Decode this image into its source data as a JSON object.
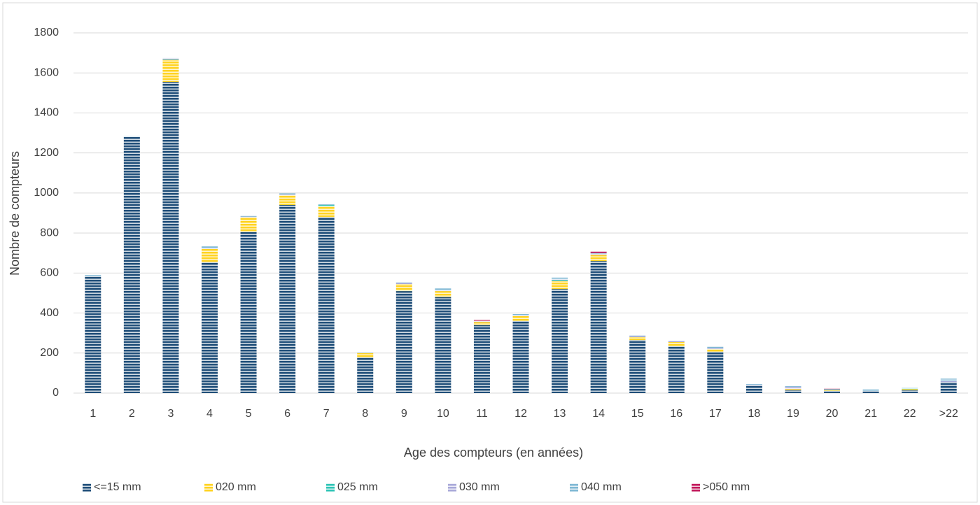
{
  "chart_data": {
    "type": "stacked_bar",
    "y_label": "Nombre de compteurs",
    "x_label": "Age des compteurs (en années)",
    "categories": [
      "1",
      "2",
      "3",
      "4",
      "5",
      "6",
      "7",
      "8",
      "9",
      "10",
      "11",
      "12",
      "13",
      "14",
      "15",
      "16",
      "17",
      "18",
      "19",
      "20",
      "21",
      "22",
      ">22"
    ],
    "series": [
      {
        "name": "<=15 mm",
        "color": "#1f4e79",
        "values": [
          585,
          1280,
          1555,
          655,
          805,
          940,
          880,
          180,
          510,
          480,
          340,
          360,
          520,
          660,
          265,
          235,
          205,
          40,
          15,
          10,
          10,
          15,
          55
        ]
      },
      {
        "name": "020 mm",
        "color": "#ffd320",
        "values": [
          0,
          0,
          110,
          65,
          75,
          50,
          55,
          20,
          35,
          30,
          15,
          25,
          40,
          30,
          15,
          20,
          15,
          0,
          5,
          5,
          0,
          5,
          0
        ]
      },
      {
        "name": "025 mm",
        "color": "#2ec4b6",
        "values": [
          0,
          0,
          2,
          0,
          0,
          0,
          5,
          0,
          0,
          0,
          0,
          0,
          5,
          0,
          0,
          0,
          0,
          0,
          0,
          2,
          0,
          5,
          0
        ]
      },
      {
        "name": "030 mm",
        "color": "#a9a9d9",
        "values": [
          0,
          0,
          5,
          5,
          2,
          3,
          0,
          0,
          5,
          5,
          5,
          5,
          5,
          5,
          5,
          5,
          5,
          2,
          12,
          0,
          0,
          0,
          5
        ]
      },
      {
        "name": "040 mm",
        "color": "#7fb8d4",
        "values": [
          5,
          5,
          3,
          8,
          3,
          5,
          3,
          2,
          3,
          8,
          0,
          5,
          7,
          5,
          5,
          3,
          8,
          3,
          3,
          3,
          8,
          2,
          12
        ]
      },
      {
        "name": ">050 mm",
        "color": "#c2185b",
        "values": [
          0,
          0,
          0,
          0,
          0,
          0,
          0,
          0,
          0,
          0,
          5,
          0,
          0,
          8,
          0,
          0,
          0,
          0,
          0,
          5,
          0,
          0,
          0
        ]
      }
    ],
    "ylim": [
      0,
      1800
    ],
    "yticks": [
      0,
      200,
      400,
      600,
      800,
      1000,
      1200,
      1400,
      1600,
      1800
    ],
    "grid": true,
    "legend": "bottom"
  }
}
